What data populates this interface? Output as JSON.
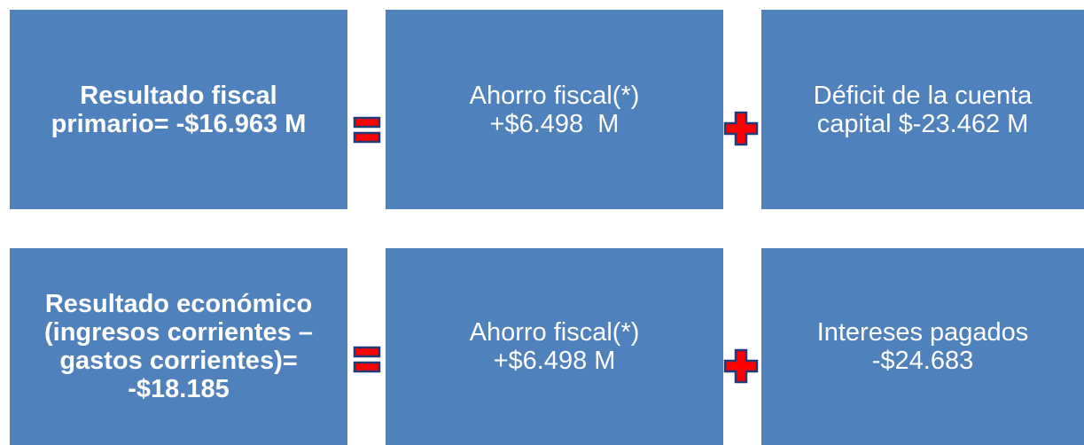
{
  "rows": [
    {
      "boxes": [
        {
          "lines": [
            "Resultado fiscal",
            "primario= -$16.963 M"
          ]
        },
        {
          "lines": [
            "Ahorro fiscal(*)",
            "+$6.498  M"
          ]
        },
        {
          "lines": [
            "Déficit de la cuenta",
            "capital $-23.462 M"
          ]
        }
      ]
    },
    {
      "boxes": [
        {
          "lines": [
            "Resultado económico",
            "(ingresos corrientes –",
            "gastos corrientes)=",
            "-$18.185"
          ]
        },
        {
          "lines": [
            "Ahorro fiscal(*)",
            "+$6.498 M"
          ]
        },
        {
          "lines": [
            "Intereses pagados",
            "-$24.683"
          ]
        }
      ]
    }
  ]
}
